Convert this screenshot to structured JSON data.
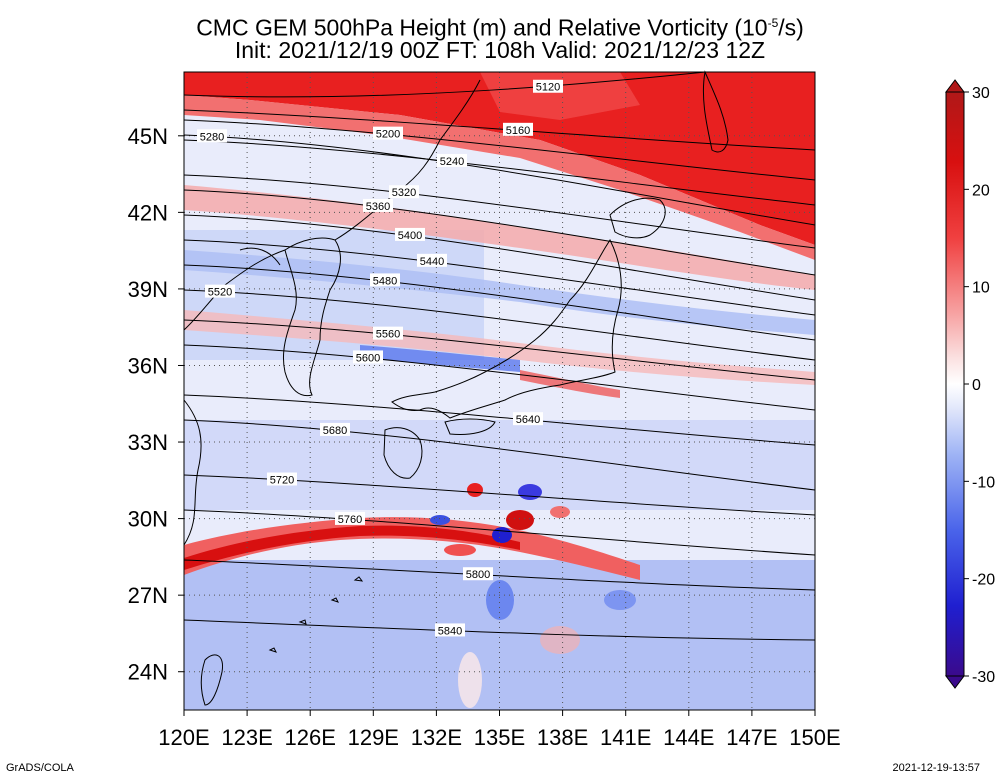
{
  "title": {
    "line1": "CMC GEM 500hPa Height (m) and Relative Vorticity (10",
    "line1_sup": "-5",
    "line1_tail": "/s)",
    "line2": "Init: 2021/12/19 00Z  FT: 108h  Valid: 2021/12/23 12Z"
  },
  "axes": {
    "lon_labels": [
      "120E",
      "123E",
      "126E",
      "129E",
      "132E",
      "135E",
      "138E",
      "141E",
      "144E",
      "147E",
      "150E"
    ],
    "lat_labels": [
      "45N",
      "42N",
      "39N",
      "36N",
      "33N",
      "30N",
      "27N",
      "24N"
    ],
    "lon_range": [
      120,
      150
    ],
    "lat_range": [
      22.5,
      47.5
    ]
  },
  "colorbar": {
    "ticks": [
      "30",
      "20",
      "10",
      "0",
      "-10",
      "-20",
      "-30"
    ],
    "range": [
      -30,
      30
    ],
    "colors": [
      "#3a0a8c",
      "#1f1fd9",
      "#5a78f0",
      "#9fb4f5",
      "#dde4fa",
      "#ffffff",
      "#fbdada",
      "#f49999",
      "#ee3a3a",
      "#d81010",
      "#b01818"
    ]
  },
  "contours": [
    {
      "value": 5120,
      "label": "5120"
    },
    {
      "value": 5160,
      "label": "5160"
    },
    {
      "value": 5200,
      "label": "5200"
    },
    {
      "value": 5240,
      "label": "5240"
    },
    {
      "value": 5280,
      "label": "5280"
    },
    {
      "value": 5320,
      "label": "5320"
    },
    {
      "value": 5360,
      "label": "5360"
    },
    {
      "value": 5400,
      "label": "5400"
    },
    {
      "value": 5440,
      "label": "5440"
    },
    {
      "value": 5480,
      "label": "5480"
    },
    {
      "value": 5520,
      "label": "5520"
    },
    {
      "value": 5560,
      "label": "5560"
    },
    {
      "value": 5600,
      "label": "5600"
    },
    {
      "value": 5640,
      "label": "5640"
    },
    {
      "value": 5680,
      "label": "5680"
    },
    {
      "value": 5720,
      "label": "5720"
    },
    {
      "value": 5760,
      "label": "5760"
    },
    {
      "value": 5800,
      "label": "5800"
    },
    {
      "value": 5840,
      "label": "5840"
    }
  ],
  "footer": {
    "left": "GrADS/COLA",
    "right": "2021-12-19-13:57"
  }
}
